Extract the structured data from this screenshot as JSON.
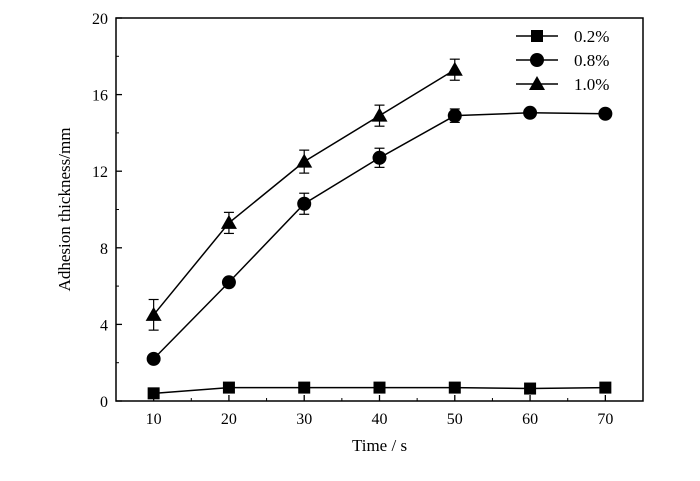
{
  "chart_data": {
    "type": "line",
    "xlabel": "Time / s",
    "ylabel": "Adhesion thickness/mm",
    "xlim": [
      5,
      75
    ],
    "ylim": [
      0,
      20
    ],
    "xticks": [
      10,
      20,
      30,
      40,
      50,
      60,
      70
    ],
    "yticks": [
      0,
      4,
      8,
      12,
      16,
      20
    ],
    "grid": false,
    "legend_position": "top-right",
    "series": [
      {
        "name": "0.2%",
        "marker": "square",
        "x": [
          10,
          20,
          30,
          40,
          50,
          60,
          70
        ],
        "y": [
          0.4,
          0.7,
          0.7,
          0.7,
          0.7,
          0.65,
          0.7
        ],
        "err": [
          0,
          0,
          0,
          0,
          0,
          0,
          0
        ]
      },
      {
        "name": "0.8%",
        "marker": "circle",
        "x": [
          10,
          20,
          30,
          40,
          50,
          60,
          70
        ],
        "y": [
          2.2,
          6.2,
          10.3,
          12.7,
          14.9,
          15.05,
          15.0
        ],
        "err": [
          0,
          0,
          0.55,
          0.5,
          0.35,
          0,
          0
        ]
      },
      {
        "name": "1.0%",
        "marker": "triangle",
        "x": [
          10,
          20,
          30,
          40,
          50
        ],
        "y": [
          4.5,
          9.3,
          12.5,
          14.9,
          17.3
        ],
        "err": [
          0.8,
          0.55,
          0.6,
          0.55,
          0.55
        ]
      }
    ]
  }
}
